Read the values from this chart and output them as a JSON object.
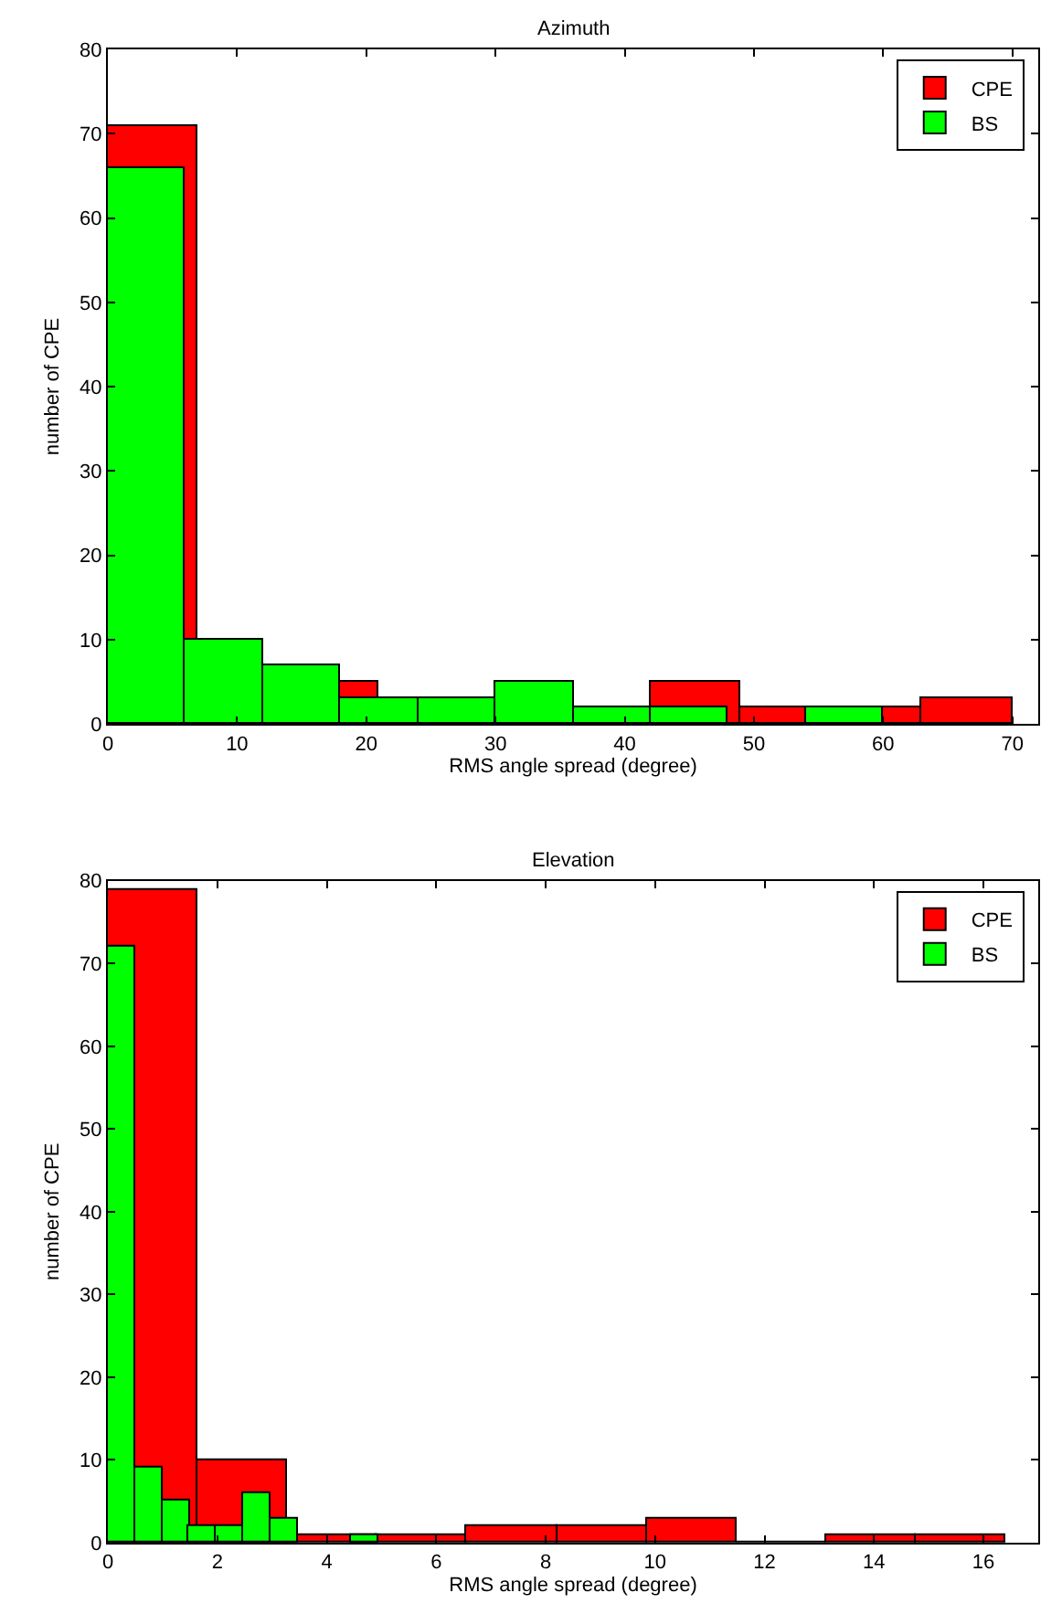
{
  "chart_data": [
    {
      "type": "bar",
      "title": "Azimuth",
      "xlabel": "RMS angle spread (degree)",
      "ylabel": "number of CPE",
      "xlim": [
        0,
        72
      ],
      "xticks": [
        0,
        10,
        20,
        30,
        40,
        50,
        60,
        70
      ],
      "ylim": [
        0,
        80
      ],
      "yticks": [
        0,
        10,
        20,
        30,
        40,
        50,
        60,
        70,
        80
      ],
      "legend": "top right",
      "series": [
        {
          "name": "CPE",
          "color": "#ff0000",
          "x": [
            3.5,
            10.5,
            17.5,
            24.5,
            31.5,
            38.5,
            45.5,
            52.5,
            59.5,
            66.5
          ],
          "values": [
            71,
            null,
            5,
            null,
            null,
            null,
            5,
            2,
            2,
            3
          ]
        },
        {
          "name": "BS",
          "color": "#00ff00",
          "x": [
            3,
            9,
            15,
            21,
            27,
            33,
            39,
            45,
            51,
            57
          ],
          "values": [
            66,
            10,
            7,
            3,
            3,
            5,
            2,
            2,
            null,
            2
          ]
        }
      ]
    },
    {
      "type": "bar",
      "title": "Elevation",
      "xlabel": "RMS angle spread (degree)",
      "ylabel": "number of CPE",
      "xlim": [
        0,
        17
      ],
      "xticks": [
        0,
        2,
        4,
        6,
        8,
        10,
        12,
        14,
        16
      ],
      "ylim": [
        0,
        80
      ],
      "yticks": [
        0,
        10,
        20,
        30,
        40,
        50,
        60,
        70,
        80
      ],
      "legend": "top right",
      "series": [
        {
          "name": "CPE",
          "color": "#ff0000",
          "x": [
            0.82,
            2.46,
            4.1,
            5.74,
            7.38,
            9.02,
            10.66,
            12.3,
            13.94,
            15.58
          ],
          "values": [
            79,
            10,
            1,
            1,
            2,
            2,
            3,
            0,
            1,
            1
          ]
        },
        {
          "name": "BS",
          "color": "#00ff00",
          "x": [
            0.25,
            0.74,
            1.24,
            1.73,
            2.23,
            2.72,
            3.22,
            3.71,
            4.21,
            4.7
          ],
          "values": [
            72,
            9,
            5,
            2,
            2,
            6,
            3,
            null,
            null,
            1
          ]
        }
      ]
    }
  ]
}
